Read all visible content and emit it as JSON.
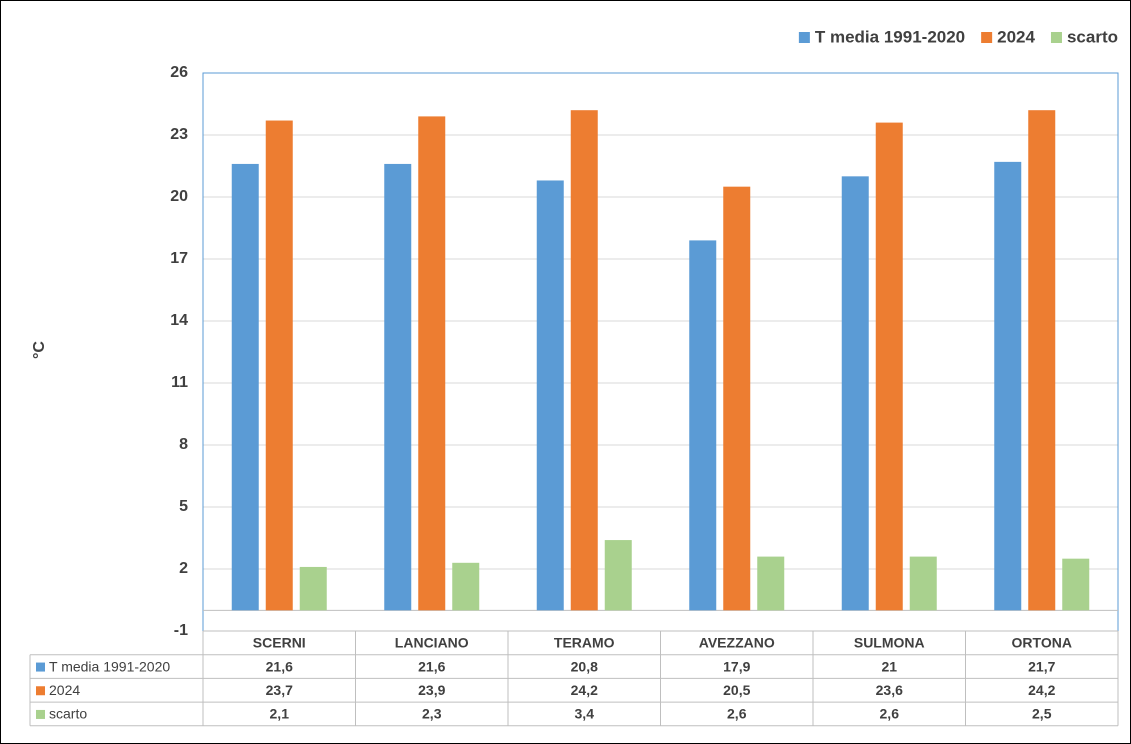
{
  "chart_data": {
    "type": "bar",
    "y_label": "°C",
    "categories": [
      "SCERNI",
      "LANCIANO",
      "TERAMO",
      "AVEZZANO",
      "SULMONA",
      "ORTONA"
    ],
    "series": [
      {
        "name": "T media 1991-2020",
        "color": "#5b9bd5",
        "values": [
          21.6,
          21.6,
          20.8,
          17.9,
          21,
          21.7
        ],
        "value_labels": [
          "21,6",
          "21,6",
          "20,8",
          "17,9",
          "21",
          "21,7"
        ]
      },
      {
        "name": "2024",
        "color": "#ed7d31",
        "values": [
          23.7,
          23.9,
          24.2,
          20.5,
          23.6,
          24.2
        ],
        "value_labels": [
          "23,7",
          "23,9",
          "24,2",
          "20,5",
          "23,6",
          "24,2"
        ]
      },
      {
        "name": "scarto",
        "color": "#a9d18e",
        "values": [
          2.1,
          2.3,
          3.4,
          2.6,
          2.6,
          2.5
        ],
        "value_labels": [
          "2,1",
          "2,3",
          "3,4",
          "2,6",
          "2,6",
          "2,5"
        ]
      }
    ],
    "ylim": [
      -1,
      26
    ],
    "yticks": [
      -1,
      2,
      5,
      8,
      11,
      14,
      17,
      20,
      23,
      26
    ],
    "grid": true,
    "legend": "top-right"
  }
}
